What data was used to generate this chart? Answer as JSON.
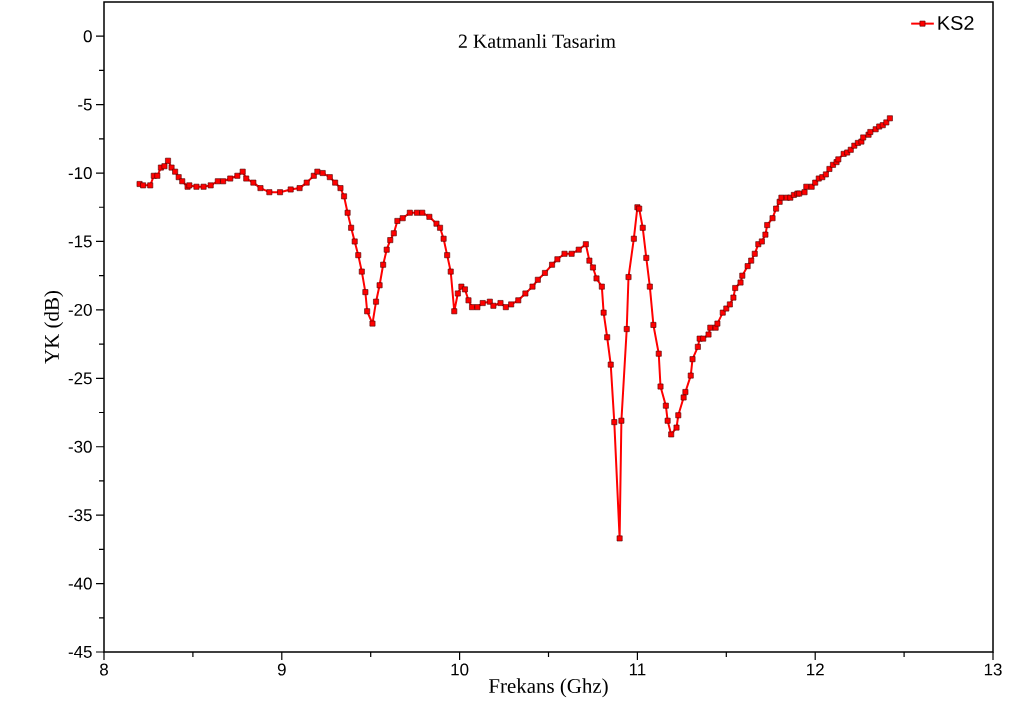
{
  "chart_data": {
    "type": "line",
    "title": "2 Katmanli Tasarim",
    "xlabel": "Frekans (Ghz)",
    "ylabel": "YK (dB)",
    "x": [
      8.2,
      8.22,
      8.26,
      8.28,
      8.3,
      8.32,
      8.34,
      8.36,
      8.38,
      8.4,
      8.42,
      8.44,
      8.47,
      8.48,
      8.52,
      8.56,
      8.6,
      8.64,
      8.67,
      8.71,
      8.75,
      8.78,
      8.8,
      8.84,
      8.88,
      8.93,
      8.99,
      9.05,
      9.1,
      9.14,
      9.18,
      9.2,
      9.23,
      9.27,
      9.3,
      9.33,
      9.35,
      9.37,
      9.39,
      9.41,
      9.43,
      9.45,
      9.47,
      9.48,
      9.51,
      9.53,
      9.55,
      9.57,
      9.59,
      9.61,
      9.63,
      9.65,
      9.68,
      9.72,
      9.76,
      9.79,
      9.83,
      9.87,
      9.89,
      9.91,
      9.93,
      9.95,
      9.97,
      9.99,
      10.01,
      10.03,
      10.05,
      10.07,
      10.1,
      10.13,
      10.17,
      10.19,
      10.23,
      10.26,
      10.29,
      10.33,
      10.37,
      10.41,
      10.44,
      10.48,
      10.52,
      10.55,
      10.59,
      10.63,
      10.67,
      10.71,
      10.73,
      10.75,
      10.77,
      10.8,
      10.81,
      10.83,
      10.85,
      10.87,
      10.9,
      10.91,
      10.94,
      10.95,
      10.98,
      11.0,
      11.01,
      11.03,
      11.05,
      11.07,
      11.09,
      11.12,
      11.13,
      11.16,
      11.17,
      11.19,
      11.22,
      11.23,
      11.26,
      11.27,
      11.3,
      11.31,
      11.34,
      11.35,
      11.37,
      11.4,
      11.41,
      11.44,
      11.45,
      11.48,
      11.5,
      11.52,
      11.54,
      11.55,
      11.58,
      11.59,
      11.62,
      11.64,
      11.66,
      11.68,
      11.7,
      11.72,
      11.73,
      11.76,
      11.78,
      11.8,
      11.81,
      11.84,
      11.86,
      11.88,
      11.9,
      11.91,
      11.94,
      11.95,
      11.98,
      12.0,
      12.02,
      12.04,
      12.06,
      12.08,
      12.1,
      12.12,
      12.13,
      12.16,
      12.18,
      12.2,
      12.22,
      12.24,
      12.26,
      12.27,
      12.3,
      12.31,
      12.34,
      12.36,
      12.38,
      12.4,
      12.42
    ],
    "series": [
      {
        "name": "KS2",
        "color": "#ff0000",
        "values": [
          -10.8,
          -10.9,
          -10.9,
          -10.2,
          -10.2,
          -9.6,
          -9.5,
          -9.1,
          -9.6,
          -9.9,
          -10.3,
          -10.6,
          -11.0,
          -10.9,
          -11.0,
          -11.0,
          -10.9,
          -10.6,
          -10.6,
          -10.4,
          -10.2,
          -9.9,
          -10.4,
          -10.7,
          -11.1,
          -11.4,
          -11.4,
          -11.2,
          -11.1,
          -10.7,
          -10.2,
          -9.9,
          -10.0,
          -10.3,
          -10.7,
          -11.1,
          -11.7,
          -12.9,
          -14.0,
          -15.0,
          -16.0,
          -17.2,
          -18.7,
          -20.1,
          -21.0,
          -19.4,
          -18.2,
          -16.7,
          -15.6,
          -14.9,
          -14.4,
          -13.5,
          -13.3,
          -12.9,
          -12.9,
          -12.9,
          -13.2,
          -13.7,
          -14.0,
          -14.8,
          -16.0,
          -17.2,
          -20.1,
          -18.8,
          -18.3,
          -18.5,
          -19.3,
          -19.8,
          -19.8,
          -19.5,
          -19.4,
          -19.7,
          -19.5,
          -19.8,
          -19.6,
          -19.3,
          -18.8,
          -18.3,
          -17.8,
          -17.3,
          -16.7,
          -16.3,
          -15.9,
          -15.9,
          -15.6,
          -15.2,
          -16.4,
          -16.9,
          -17.7,
          -18.3,
          -20.2,
          -22.0,
          -24.0,
          -28.2,
          -36.7,
          -28.1,
          -21.4,
          -17.6,
          -14.8,
          -12.5,
          -12.6,
          -14.0,
          -16.2,
          -18.3,
          -21.1,
          -23.2,
          -25.6,
          -27.0,
          -28.1,
          -29.1,
          -28.6,
          -27.7,
          -26.4,
          -26.0,
          -24.8,
          -23.6,
          -22.7,
          -22.1,
          -22.1,
          -21.8,
          -21.3,
          -21.3,
          -21.0,
          -20.2,
          -19.9,
          -19.6,
          -19.1,
          -18.4,
          -18.0,
          -17.5,
          -16.8,
          -16.4,
          -15.9,
          -15.2,
          -15.0,
          -14.5,
          -13.8,
          -13.3,
          -12.6,
          -12.1,
          -11.8,
          -11.8,
          -11.8,
          -11.6,
          -11.5,
          -11.5,
          -11.4,
          -11.0,
          -11.0,
          -10.7,
          -10.4,
          -10.3,
          -10.1,
          -9.7,
          -9.4,
          -9.2,
          -9.0,
          -8.6,
          -8.5,
          -8.3,
          -8.0,
          -7.8,
          -7.7,
          -7.4,
          -7.2,
          -7.0,
          -6.8,
          -6.6,
          -6.5,
          -6.3,
          -6.0
        ]
      }
    ],
    "xlim": [
      8,
      13
    ],
    "ylim": [
      -45,
      2.5
    ],
    "xticks": [
      8,
      9,
      10,
      11,
      12,
      13
    ],
    "yticks": [
      -45,
      -40,
      -35,
      -30,
      -25,
      -20,
      -15,
      -10,
      -5,
      0
    ],
    "marker": "square",
    "line_style": "solid",
    "legend": "top right"
  }
}
